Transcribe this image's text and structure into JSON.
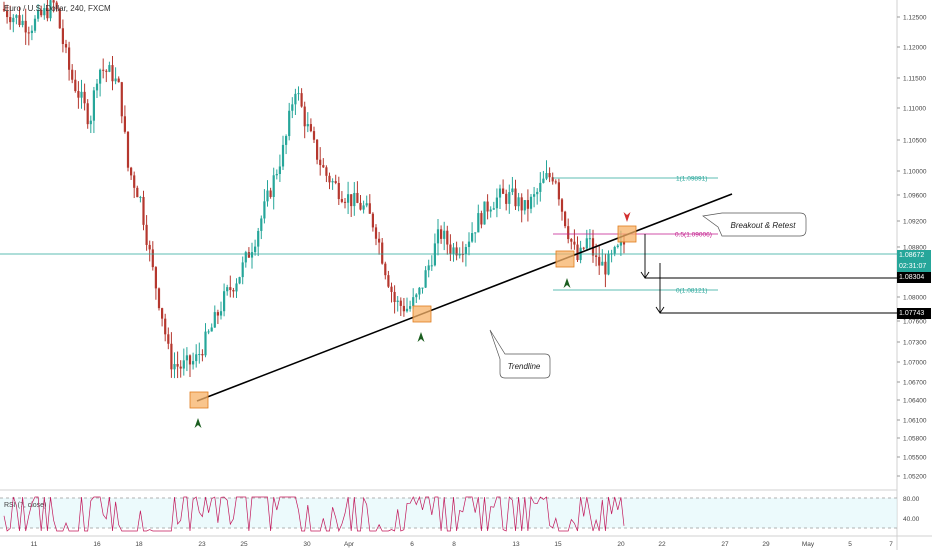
{
  "chart_data": {
    "type": "candlestick",
    "title": "Euro / U.S. Dollar, 240, FXCM",
    "y_ticks": [
      "1.12500",
      "1.12000",
      "1.11500",
      "1.11000",
      "1.10500",
      "1.10000",
      "1.09600",
      "1.09200",
      "1.08800",
      "1.08400",
      "1.08000",
      "1.07600",
      "1.07300",
      "1.07000",
      "1.06700",
      "1.06400",
      "1.06100",
      "1.05800",
      "1.05500",
      "1.05200"
    ],
    "x_ticks": [
      "11",
      "16",
      "18",
      "23",
      "25",
      "30",
      "Apr",
      "6",
      "8",
      "13",
      "15",
      "20",
      "22",
      "27",
      "29",
      "May",
      "5",
      "7"
    ],
    "ylim": [
      1.0485,
      1.1282
    ],
    "price_labels": {
      "current": "1.08672",
      "countdown": "02:31:07",
      "target1": "1.08304",
      "target2": "1.07743"
    },
    "fib_levels": [
      {
        "label": "1(1.09891)",
        "value": 1.09891
      },
      {
        "label": "0.5(1.09006)",
        "value": 1.09006
      },
      {
        "label": "0(1.08121)",
        "value": 1.08121
      }
    ],
    "annotations": {
      "breakout": "Breakout & Retest",
      "trendline": "Trendline"
    },
    "candles": [],
    "rsi": {
      "label": "RSI (7, close)",
      "levels": [
        "80.00",
        "40.00"
      ]
    },
    "colors": {
      "up": "#26a69a",
      "down": "#b5372e",
      "fib": "#26a69a",
      "fib_mid": "#c2188b",
      "rsi_line": "#c2185b",
      "rsi_band": "#e0f7fa",
      "trendline": "#000000",
      "box": "#f7b267",
      "arrow_green": "#1b5e20",
      "arrow_red": "#d32f2f",
      "current_line": "#26a69a"
    }
  }
}
